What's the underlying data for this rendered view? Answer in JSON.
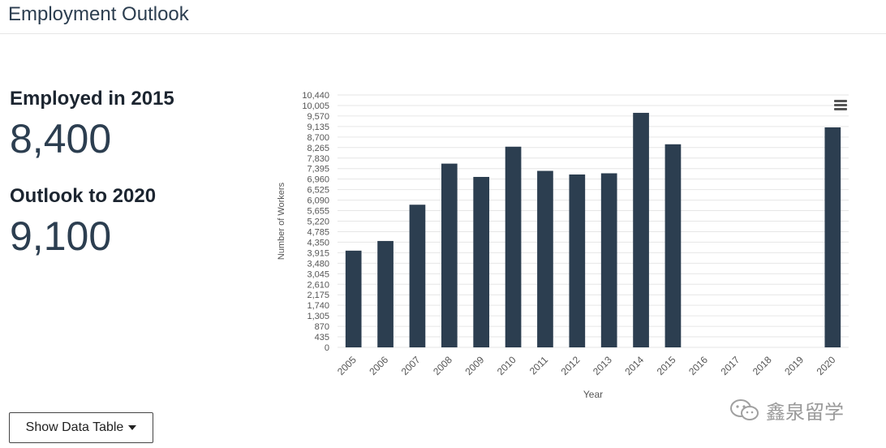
{
  "header": {
    "title": "Employment Outlook"
  },
  "stats": {
    "employed_label": "Employed in 2015",
    "employed_value": "8,400",
    "outlook_label": "Outlook to 2020",
    "outlook_value": "9,100"
  },
  "data_table_button": {
    "label": "Show Data Table"
  },
  "watermark": {
    "text": "鑫泉留学"
  },
  "colors": {
    "bar": "#2c3e50",
    "grid": "#e6e6e6",
    "text": "#555555"
  },
  "chart_data": {
    "type": "bar",
    "categories": [
      "2005",
      "2006",
      "2007",
      "2008",
      "2009",
      "2010",
      "2011",
      "2012",
      "2013",
      "2014",
      "2015",
      "2016",
      "2017",
      "2018",
      "2019",
      "2020"
    ],
    "values": [
      4000,
      4400,
      5900,
      7600,
      7050,
      8300,
      7300,
      7150,
      7200,
      9700,
      8400,
      null,
      null,
      null,
      null,
      9100
    ],
    "title": "",
    "xlabel": "Year",
    "ylabel": "Number of Workers",
    "ylim": [
      0,
      10440
    ],
    "yticks": [
      "0",
      "435",
      "870",
      "1,305",
      "1,740",
      "2,175",
      "2,610",
      "3,045",
      "3,480",
      "3,915",
      "4,350",
      "4,785",
      "5,220",
      "5,655",
      "6,090",
      "6,525",
      "6,960",
      "7,395",
      "7,830",
      "8,265",
      "8,700",
      "9,135",
      "9,570",
      "10,005",
      "10,440"
    ],
    "grid": true,
    "legend": "none"
  }
}
